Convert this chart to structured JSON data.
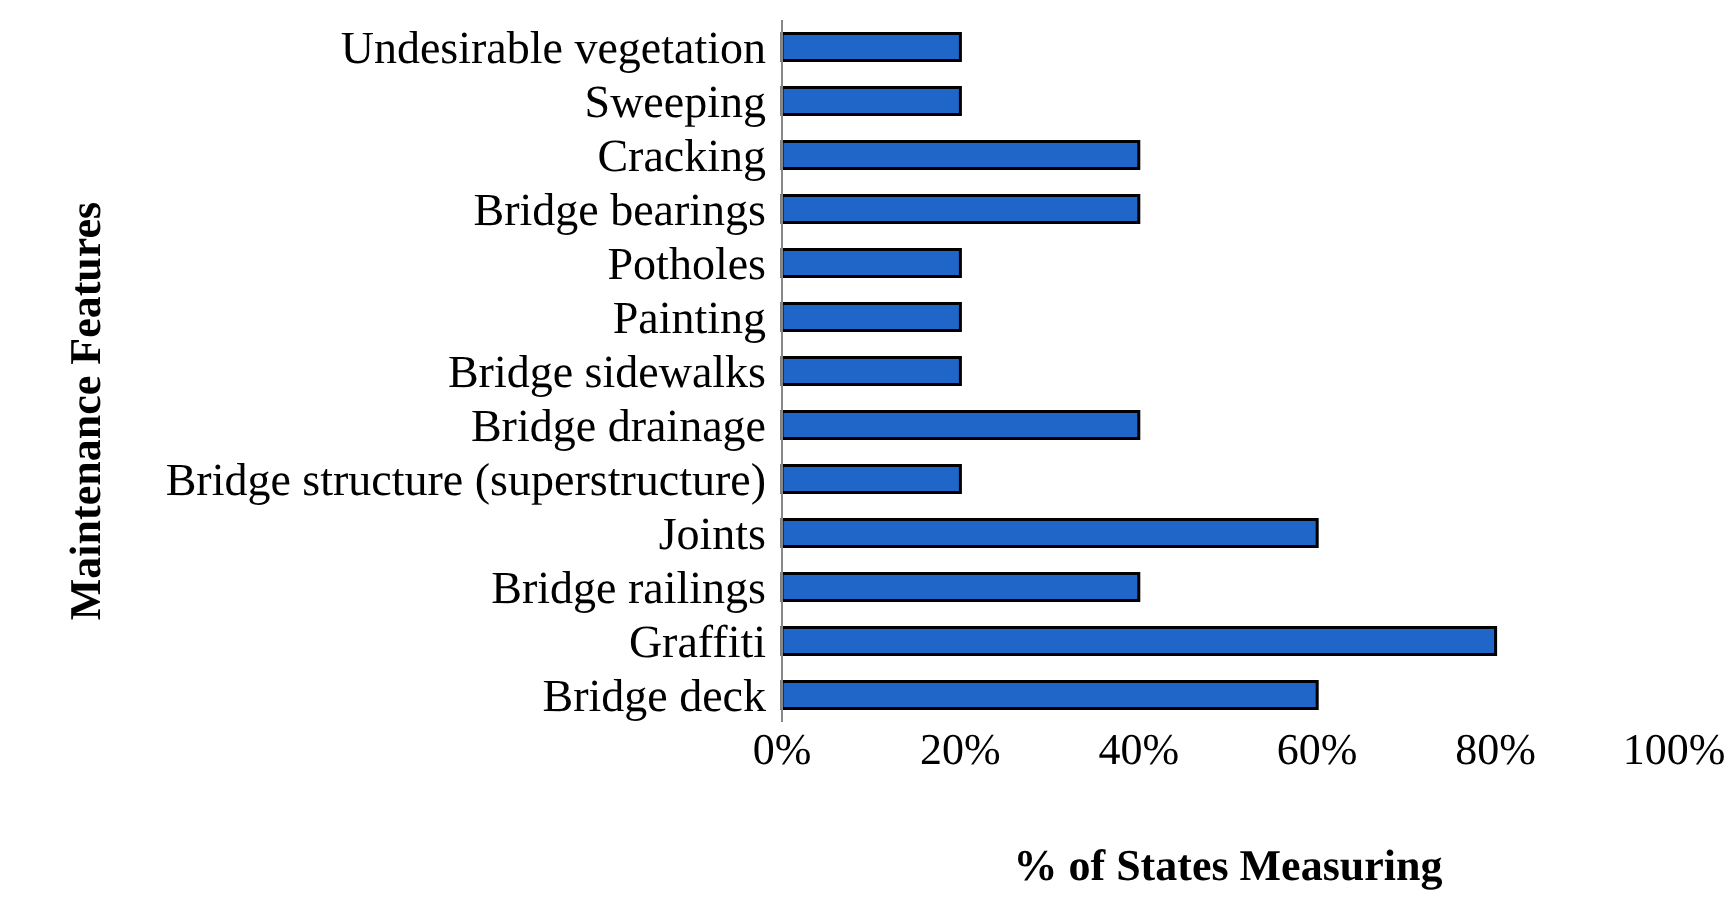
{
  "chart_data": {
    "type": "bar",
    "orientation": "horizontal",
    "xlabel": "% of States Measuring",
    "ylabel": "Maintenance Features",
    "categories": [
      "Undesirable vegetation",
      "Sweeping",
      "Cracking",
      "Bridge bearings",
      "Potholes",
      "Painting",
      "Bridge sidewalks",
      "Bridge drainage",
      "Bridge structure (superstructure)",
      "Joints",
      "Bridge railings",
      "Graffiti",
      "Bridge deck"
    ],
    "values": [
      20,
      20,
      40,
      40,
      20,
      20,
      20,
      40,
      20,
      60,
      40,
      80,
      60
    ],
    "color": "#1f66c8",
    "xlim": [
      0,
      100
    ],
    "xticks": [
      {
        "value": 0,
        "label": "0%"
      },
      {
        "value": 20,
        "label": "20%"
      },
      {
        "value": 40,
        "label": "40%"
      },
      {
        "value": 60,
        "label": "60%"
      },
      {
        "value": 80,
        "label": "80%"
      },
      {
        "value": 100,
        "label": "100%"
      }
    ],
    "grid": false
  }
}
